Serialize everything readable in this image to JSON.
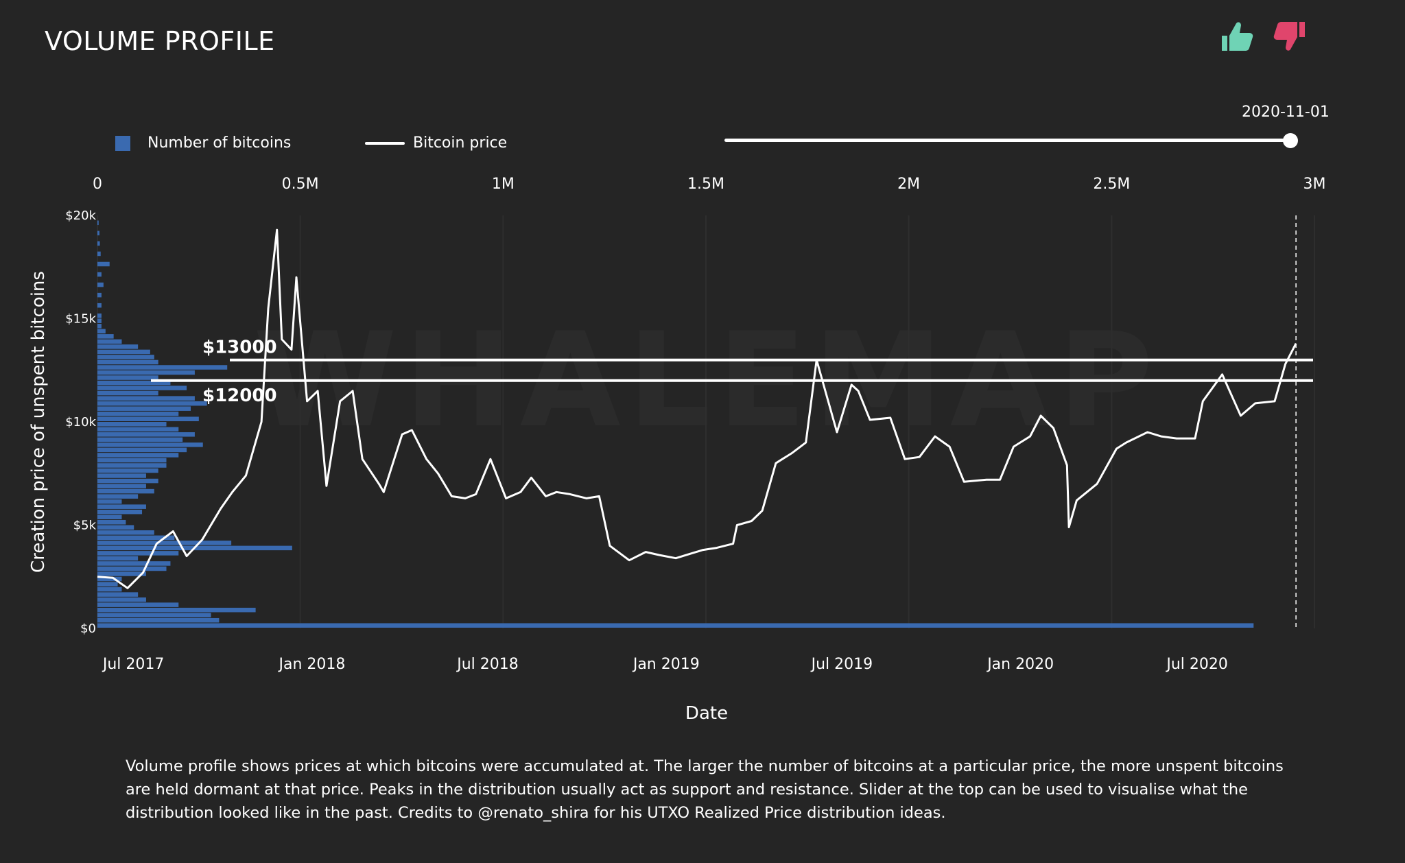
{
  "page": {
    "title": "VOLUME PROFILE",
    "description": "Volume profile shows prices at which bitcoins were accumulated at. The larger the number of bitcoins at a particular price, the more unspent bitcoins are held dormant at that price. Peaks in the distribution usually act as support and resistance. Slider at the top can be used to visualise what the distribution looked like in the past. Credits to @renato_shira for his UTXO Realized Price distribution ideas.",
    "thumbs_up_icon": "thumbs-up-icon",
    "thumbs_down_icon": "thumbs-down-icon",
    "colors": {
      "background": "#252525",
      "bars": "#3a6ab0",
      "price": "#ffffff",
      "thumbs_up": "#6fd3b5",
      "thumbs_down": "#e0456c",
      "watermark": "#2b2b2b"
    },
    "watermark": "WHALEMAP"
  },
  "slider": {
    "label": "2020-11-01",
    "value": 1.0
  },
  "legend": [
    {
      "label": "Number of bitcoins",
      "color": "#3a6ab0",
      "kind": "square"
    },
    {
      "label": "Bitcoin price",
      "color": "#ffffff",
      "kind": "line"
    }
  ],
  "chart_data": {
    "type": "bar+line",
    "title": "",
    "xlabel": "Date",
    "ylabel": "Creation price of unspent bitcoins",
    "x_dates_ticks": [
      "Jul 2017",
      "Jan 2018",
      "Jul 2018",
      "Jan 2019",
      "Jul 2019",
      "Jan 2020",
      "Jul 2020"
    ],
    "x_volume_ticks": [
      "0",
      "0.5M",
      "1M",
      "1.5M",
      "2M",
      "2.5M",
      "3M"
    ],
    "y_ticks": [
      "$0",
      "$5k",
      "$10k",
      "$15k",
      "$20k"
    ],
    "xlim_date": [
      "2017-06-15",
      "2020-11-20"
    ],
    "xlim_volume": [
      0,
      3000000
    ],
    "ylim": [
      0,
      20000
    ],
    "annotations": [
      {
        "label": "$13000",
        "price": 13000
      },
      {
        "label": "$12000",
        "price": 12000
      }
    ],
    "current_date_marker": "2020-11-01",
    "price_series": {
      "name": "Bitcoin price",
      "dates": [
        "2017-06-15",
        "2017-07-01",
        "2017-07-16",
        "2017-08-01",
        "2017-08-15",
        "2017-09-01",
        "2017-09-15",
        "2017-10-01",
        "2017-10-20",
        "2017-11-01",
        "2017-11-15",
        "2017-12-01",
        "2017-12-08",
        "2017-12-17",
        "2017-12-22",
        "2018-01-01",
        "2018-01-06",
        "2018-01-17",
        "2018-01-28",
        "2018-02-06",
        "2018-02-20",
        "2018-03-05",
        "2018-03-15",
        "2018-04-01",
        "2018-04-06",
        "2018-04-25",
        "2018-05-05",
        "2018-05-20",
        "2018-06-01",
        "2018-06-15",
        "2018-06-29",
        "2018-07-10",
        "2018-07-25",
        "2018-08-10",
        "2018-08-25",
        "2018-09-05",
        "2018-09-20",
        "2018-10-01",
        "2018-10-15",
        "2018-11-01",
        "2018-11-14",
        "2018-11-25",
        "2018-12-15",
        "2019-01-01",
        "2019-01-15",
        "2019-02-01",
        "2019-02-15",
        "2019-03-01",
        "2019-03-15",
        "2019-04-01",
        "2019-04-05",
        "2019-04-20",
        "2019-05-01",
        "2019-05-15",
        "2019-06-01",
        "2019-06-15",
        "2019-06-26",
        "2019-07-05",
        "2019-07-17",
        "2019-08-01",
        "2019-08-08",
        "2019-08-20",
        "2019-09-10",
        "2019-09-25",
        "2019-10-10",
        "2019-10-26",
        "2019-11-10",
        "2019-11-25",
        "2019-12-18",
        "2020-01-01",
        "2020-01-15",
        "2020-02-01",
        "2020-02-12",
        "2020-02-25",
        "2020-03-10",
        "2020-03-12",
        "2020-03-20",
        "2020-04-10",
        "2020-04-30",
        "2020-05-10",
        "2020-06-01",
        "2020-06-15",
        "2020-07-01",
        "2020-07-20",
        "2020-07-28",
        "2020-08-17",
        "2020-09-05",
        "2020-09-20",
        "2020-10-10",
        "2020-10-21",
        "2020-11-01"
      ],
      "values": [
        2500,
        2450,
        1950,
        2700,
        4100,
        4700,
        3500,
        4300,
        5800,
        6600,
        7400,
        10000,
        15500,
        19300,
        14000,
        13500,
        17000,
        11000,
        11500,
        6900,
        11000,
        11500,
        8200,
        7000,
        6600,
        9400,
        9600,
        8200,
        7500,
        6400,
        6300,
        6500,
        8200,
        6300,
        6600,
        7300,
        6400,
        6600,
        6500,
        6300,
        6400,
        4000,
        3300,
        3700,
        3550,
        3400,
        3600,
        3800,
        3900,
        4100,
        5000,
        5200,
        5700,
        8000,
        8500,
        9000,
        13000,
        11500,
        9500,
        11800,
        11500,
        10100,
        10200,
        8200,
        8300,
        9300,
        8800,
        7100,
        7200,
        7200,
        8800,
        9300,
        10300,
        9700,
        7900,
        4900,
        6200,
        7000,
        8700,
        9000,
        9500,
        9300,
        9200,
        9200,
        11000,
        12300,
        10300,
        10900,
        11000,
        12800,
        13800
      ]
    },
    "volume_profile": {
      "name": "Number of bitcoins",
      "bin_size": 250,
      "price_bins": [
        0,
        250,
        500,
        750,
        1000,
        1250,
        1500,
        1750,
        2000,
        2250,
        2500,
        2750,
        3000,
        3250,
        3500,
        3750,
        4000,
        4250,
        4500,
        4750,
        5000,
        5250,
        5500,
        5750,
        6000,
        6250,
        6500,
        6750,
        7000,
        7250,
        7500,
        7750,
        8000,
        8250,
        8500,
        8750,
        9000,
        9250,
        9500,
        9750,
        10000,
        10250,
        10500,
        10750,
        11000,
        11250,
        11500,
        11750,
        12000,
        12250,
        12500,
        12750,
        13000,
        13250,
        13500,
        13750,
        14000,
        14250,
        14500,
        14750,
        15000,
        15500,
        16000,
        16500,
        17000,
        17500,
        18000,
        18500,
        19000,
        19500
      ],
      "volumes": [
        2850000,
        300000,
        280000,
        390000,
        200000,
        120000,
        100000,
        60000,
        50000,
        60000,
        120000,
        170000,
        180000,
        100000,
        200000,
        480000,
        330000,
        190000,
        140000,
        90000,
        70000,
        60000,
        110000,
        120000,
        60000,
        100000,
        140000,
        120000,
        150000,
        120000,
        150000,
        170000,
        170000,
        200000,
        220000,
        260000,
        210000,
        240000,
        200000,
        170000,
        250000,
        200000,
        230000,
        270000,
        240000,
        150000,
        220000,
        180000,
        150000,
        240000,
        320000,
        150000,
        140000,
        130000,
        100000,
        60000,
        40000,
        20000,
        10000,
        10000,
        10000,
        10000,
        10000,
        15000,
        10000,
        30000,
        8000,
        6000,
        5000,
        3000
      ]
    }
  }
}
